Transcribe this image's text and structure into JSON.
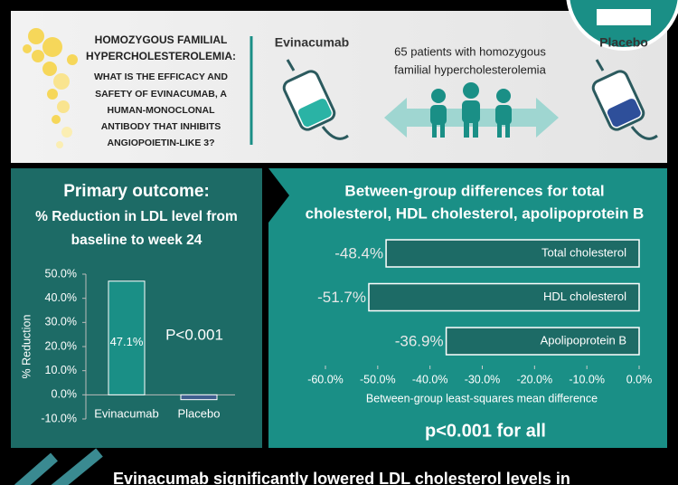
{
  "header": {
    "question": [
      "HOMOZYGOUS FAMILIAL",
      "HYPERCHOLESTEROLEMIA:",
      "WHAT IS THE EFFICACY AND",
      "SAFETY OF EVINACUMAB, A",
      "HUMAN-MONOCLONAL",
      "ANTIBODY THAT INHIBITS",
      "ANGIOPOIETIN-LIKE 3?"
    ],
    "arm_1": "Evinacumab",
    "arm_2": "Placebo",
    "population": [
      "65 patients with homozygous",
      "familial hypercholesterolemia"
    ]
  },
  "chart_data": [
    {
      "type": "bar",
      "title": [
        "Primary outcome:",
        "% Reduction in LDL level from",
        "baseline to week 24"
      ],
      "y_label": "% Reduction",
      "categories": [
        "Evinacumab",
        "Placebo"
      ],
      "values": [
        47.1,
        -2
      ],
      "value_labels": [
        "47.1%",
        null
      ],
      "colors": [
        "#1a8f86",
        "#3f5f8f"
      ],
      "annotation": "P<0.001",
      "ylim": [
        -10,
        50
      ],
      "yticks": [
        {
          "value": -10,
          "label": "-10.0%"
        },
        {
          "value": 0,
          "label": "0.0%"
        },
        {
          "value": 10,
          "label": "10.0%"
        },
        {
          "value": 20,
          "label": "20.0%"
        },
        {
          "value": 30,
          "label": "30.0%"
        },
        {
          "value": 40,
          "label": "40.0%"
        },
        {
          "value": 50,
          "label": "50.0%"
        }
      ]
    },
    {
      "type": "hbar",
      "title": [
        "Between-group differences for total",
        "cholesterol, HDL cholesterol, apolipoprotein B"
      ],
      "categories": [
        "Total cholesterol",
        "HDL cholesterol",
        "Apolipoprotein B"
      ],
      "values": [
        -48.4,
        -51.7,
        -36.9
      ],
      "value_labels": [
        "-48.4%",
        "-51.7%",
        "-36.9%"
      ],
      "color": "#1d6b66",
      "x_label": "Between-group least-squares mean difference",
      "annotation": "p<0.001 for all",
      "xlim": [
        -60,
        0
      ],
      "xticks": [
        {
          "value": -60,
          "label": "-60.0%"
        },
        {
          "value": -50,
          "label": "-50.0%"
        },
        {
          "value": -40,
          "label": "-40.0%"
        },
        {
          "value": -30,
          "label": "-30.0%"
        },
        {
          "value": -20,
          "label": "-20.0%"
        },
        {
          "value": -10,
          "label": "-10.0%"
        },
        {
          "value": 0,
          "label": "0.0%"
        }
      ]
    }
  ],
  "footer": {
    "text": "Evinacumab significantly lowered LDL cholesterol levels in"
  }
}
